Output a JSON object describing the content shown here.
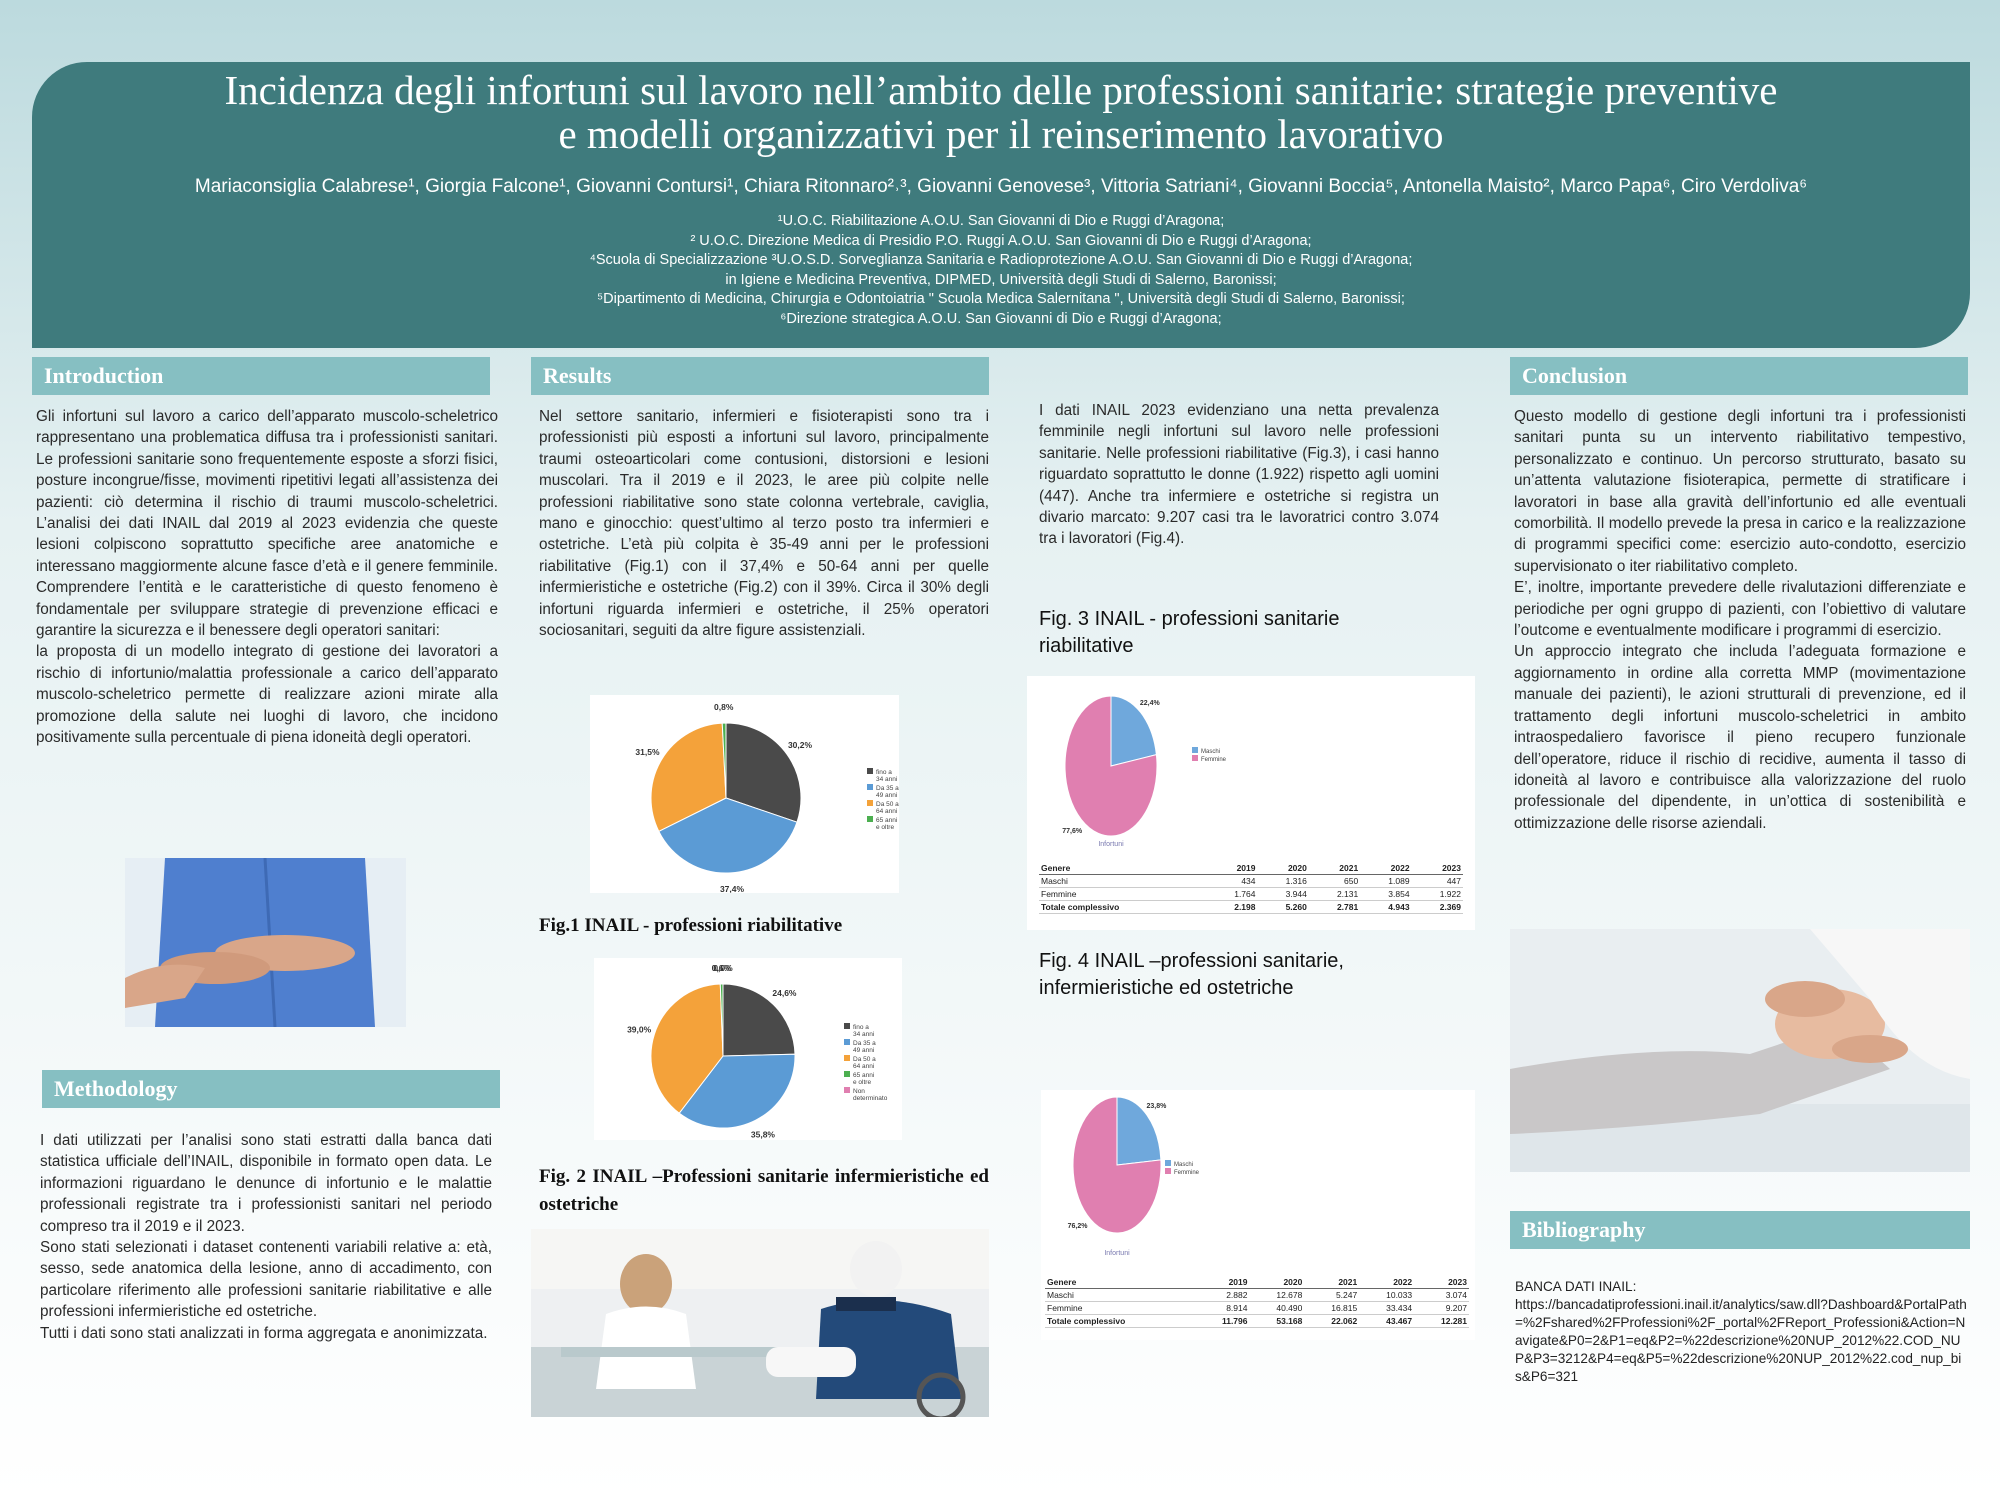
{
  "header": {
    "title_line1": "Incidenza degli infortuni sul lavoro nell’ambito delle professioni sanitarie: strategie preventive",
    "title_line2": "e modelli organizzativi per il reinserimento lavorativo",
    "authors": "Mariaconsiglia Calabrese¹, Giorgia Falcone¹, Giovanni Contursi¹, Chiara Ritonnaro²˒³, Giovanni Genovese³, Vittoria Satriani⁴, Giovanni Boccia⁵, Antonella Maisto², Marco Papa⁶, Ciro Verdoliva⁶",
    "affiliations": [
      "¹U.O.C. Riabilitazione A.O.U. San Giovanni di Dio e Ruggi d’Aragona;",
      "² U.O.C. Direzione Medica di Presidio P.O. Ruggi A.O.U. San Giovanni di Dio e Ruggi d’Aragona;",
      "⁴Scuola di Specializzazione ³U.O.S.D. Sorveglianza Sanitaria e Radioprotezione A.O.U. San Giovanni di Dio e Ruggi d’Aragona;",
      "in Igiene e Medicina Preventiva, DIPMED, Università degli Studi di Salerno, Baronissi;",
      "⁵Dipartimento di Medicina, Chirurgia e Odontoiatria \" Scuola Medica Salernitana \", Università degli Studi di Salerno, Baronissi;",
      "⁶Direzione strategica A.O.U. San Giovanni di Dio e Ruggi d’Aragona;"
    ]
  },
  "introduction": {
    "heading": "Introduction",
    "p1": "Gli infortuni sul lavoro a carico dell’apparato muscolo-scheletrico rappresentano una problematica diffusa tra i professionisti sanitari. Le professioni sanitarie sono frequentemente esposte a sforzi fisici, posture incongrue/fisse, movimenti ripetitivi legati all’assistenza dei pazienti: ciò determina il rischio di traumi muscolo-scheletrici. L’analisi dei dati INAIL dal 2019 al 2023 evidenzia che queste lesioni colpiscono soprattutto specifiche aree anatomiche e interessano maggiormente alcune fasce d’età e il genere femminile. Comprendere l’entità e le caratteristiche di questo fenomeno è fondamentale per sviluppare strategie di prevenzione efficaci e garantire la sicurezza e il benessere degli operatori sanitari:",
    "p2": "la proposta di un modello integrato di gestione dei lavoratori a rischio di infortunio/malattia professionale a carico dell’apparato muscolo-scheletrico permette di realizzare azioni mirate alla promozione della salute nei luoghi di lavoro, che incidono positivamente sulla percentuale di piena idoneità degli operatori."
  },
  "methodology": {
    "heading": "Methodology",
    "p1": "I dati utilizzati per l’analisi sono stati estratti dalla banca dati statistica ufficiale dell’INAIL, disponibile in formato open data. Le informazioni riguardano le denunce di infortunio e le malattie professionali registrate tra i professionisti sanitari nel periodo compreso tra il 2019 e il 2023.",
    "p2": "Sono stati selezionati i dataset contenenti variabili relative a: età, sesso, sede anatomica della lesione, anno di accadimento, con particolare riferimento alle professioni sanitarie riabilitative e alle professioni infermieristiche ed ostetriche.",
    "p3": "Tutti i dati sono stati analizzati in forma aggregata e anonimizzata."
  },
  "results": {
    "heading": "Results",
    "p1": "Nel settore sanitario, infermieri e fisioterapisti sono tra i professionisti più esposti a infortuni sul lavoro, principalmente traumi osteoarticolari come contusioni, distorsioni e lesioni muscolari. Tra il 2019 e il 2023, le aree più colpite nelle professioni riabilitative sono state colonna vertebrale, caviglia, mano e ginocchio: quest’ultimo al terzo posto tra infermieri e ostetriche. L’età più colpita è 35-49 anni per le professioni riabilitative (Fig.1) con il 37,4% e 50-64 anni per quelle infermieristiche e ostetriche (Fig.2) con il 39%. Circa il 30% degli infortuni riguarda infermieri e ostetriche, il 25% operatori sociosanitari, seguiti da altre figure assistenziali.",
    "fig1_caption": "Fig.1 INAIL - professioni riabilitative",
    "fig2_caption": "Fig. 2 INAIL –Professioni sanitarie infermieristiche ed ostetriche",
    "col2_p1": "I dati INAIL 2023 evidenziano una netta prevalenza femminile negli infortuni sul lavoro nelle professioni sanitarie. Nelle professioni riabilitative (Fig.3), i casi hanno riguardato soprattutto le donne (1.922) rispetto agli uomini (447). Anche tra infermiere e ostetriche si registra un divario marcato: 9.207 casi tra le lavoratrici contro 3.074 tra i lavoratori (Fig.4).",
    "fig3_caption": "Fig. 3 INAIL - professioni sanitarie riabilitative",
    "fig4_caption": "Fig. 4 INAIL –professioni sanitarie, infermieristiche ed ostetriche"
  },
  "conclusion": {
    "heading": "Conclusion",
    "p1": "Questo modello di gestione degli infortuni tra i professionisti sanitari punta su un intervento riabilitativo tempestivo, personalizzato e continuo. Un percorso strutturato, basato su un’attenta valutazione fisioterapica, permette di stratificare i lavoratori in base alla gravità dell’infortunio ed alle eventuali comorbilità. Il modello prevede la presa in carico e la realizzazione di programmi specifici come: esercizio auto-condotto, esercizio supervisionato o iter riabilitativo completo.",
    "p2": "E’, inoltre, importante prevedere delle rivalutazioni differenziate e periodiche per ogni gruppo di pazienti, con l’obiettivo di valutare l’outcome e eventualmente modificare i programmi di esercizio.",
    "p3": "Un approccio integrato che includa l’adeguata formazione e aggiornamento in ordine alla corretta MMP (movimentazione manuale dei pazienti), le azioni strutturali di prevenzione, ed il trattamento degli infortuni muscolo-scheletrici in ambito intraospedaliero favorisce il pieno recupero funzionale dell’operatore, riduce il rischio di recidive, aumenta il tasso di idoneità al lavoro e contribuisce alla valorizzazione del ruolo professionale del dipendente, in un’ottica di sostenibilità e ottimizzazione delle risorse aziendali."
  },
  "bibliography": {
    "heading": "Bibliography",
    "label": "BANCA DATI INAIL:",
    "url": "https://bancadatiprofessioni.inail.it/analytics/saw.dll?Dashboard&PortalPath=%2Fshared%2FProfessioni%2F_portal%2FReport_Professioni&Action=Navigate&P0=2&P1=eq&P2=%22descrizione%20NUP_2012%22.COD_NUP&P3=3212&P4=eq&P5=%22descrizione%20NUP_2012%22.cod_nup_bis&P6=321"
  },
  "colors": {
    "banner": "#3f7b7d",
    "section_head": "#86bfc2",
    "dark": "#4a4a4a",
    "blue": "#5b9bd5",
    "orange": "#f4a23a",
    "green": "#4caf50",
    "pink": "#e07fb0",
    "lightblue": "#6fa8dc"
  },
  "chart_data": [
    {
      "id": "fig1",
      "type": "pie",
      "categories": [
        "fino a 34 anni",
        "Da 35 a 49 anni",
        "Da 50 a 64 anni",
        "65 anni e oltre"
      ],
      "values": [
        30.2,
        37.4,
        31.5,
        0.8
      ],
      "labels": [
        "30,2%",
        "37,4%",
        "31,5%",
        "0,8%"
      ],
      "colors": [
        "#4a4a4a",
        "#5b9bd5",
        "#f4a23a",
        "#4caf50"
      ],
      "legend": "right"
    },
    {
      "id": "fig2",
      "type": "pie",
      "categories": [
        "fino a 34 anni",
        "Da 35 a 49 anni",
        "Da 50 a 64 anni",
        "65 anni e oltre",
        "Non determinato"
      ],
      "values": [
        24.6,
        35.8,
        39.0,
        0.6,
        0.0
      ],
      "labels": [
        "24,6%",
        "35,8%",
        "39,0%",
        "0,6%",
        "0,0%"
      ],
      "colors": [
        "#4a4a4a",
        "#5b9bd5",
        "#f4a23a",
        "#4caf50",
        "#e07fb0"
      ],
      "legend": "right"
    },
    {
      "id": "fig3",
      "type": "pie",
      "categories": [
        "Maschi",
        "Femmine"
      ],
      "values": [
        22.4,
        77.6
      ],
      "labels": [
        "22,4%",
        "77,6%"
      ],
      "colors": [
        "#6fa8dc",
        "#e07fb0"
      ],
      "xlabel": "Infortuni",
      "legend": "right",
      "table": {
        "header": [
          "Genere",
          "2019",
          "2020",
          "2021",
          "2022",
          "2023"
        ],
        "rows": [
          [
            "Maschi",
            "434",
            "1.316",
            "650",
            "1.089",
            "447"
          ],
          [
            "Femmine",
            "1.764",
            "3.944",
            "2.131",
            "3.854",
            "1.922"
          ],
          [
            "Totale complessivo",
            "2.198",
            "5.260",
            "2.781",
            "4.943",
            "2.369"
          ]
        ]
      }
    },
    {
      "id": "fig4",
      "type": "pie",
      "categories": [
        "Maschi",
        "Femmine"
      ],
      "values": [
        23.8,
        76.2
      ],
      "labels": [
        "23,8%",
        "76,2%"
      ],
      "colors": [
        "#6fa8dc",
        "#e07fb0"
      ],
      "xlabel": "Infortuni",
      "legend": "right",
      "table": {
        "header": [
          "Genere",
          "2019",
          "2020",
          "2021",
          "2022",
          "2023"
        ],
        "rows": [
          [
            "Maschi",
            "2.882",
            "12.678",
            "5.247",
            "10.033",
            "3.074"
          ],
          [
            "Femmine",
            "8.914",
            "40.490",
            "16.815",
            "33.434",
            "9.207"
          ],
          [
            "Totale complessivo",
            "11.796",
            "53.168",
            "22.062",
            "43.467",
            "12.281"
          ]
        ]
      }
    }
  ]
}
